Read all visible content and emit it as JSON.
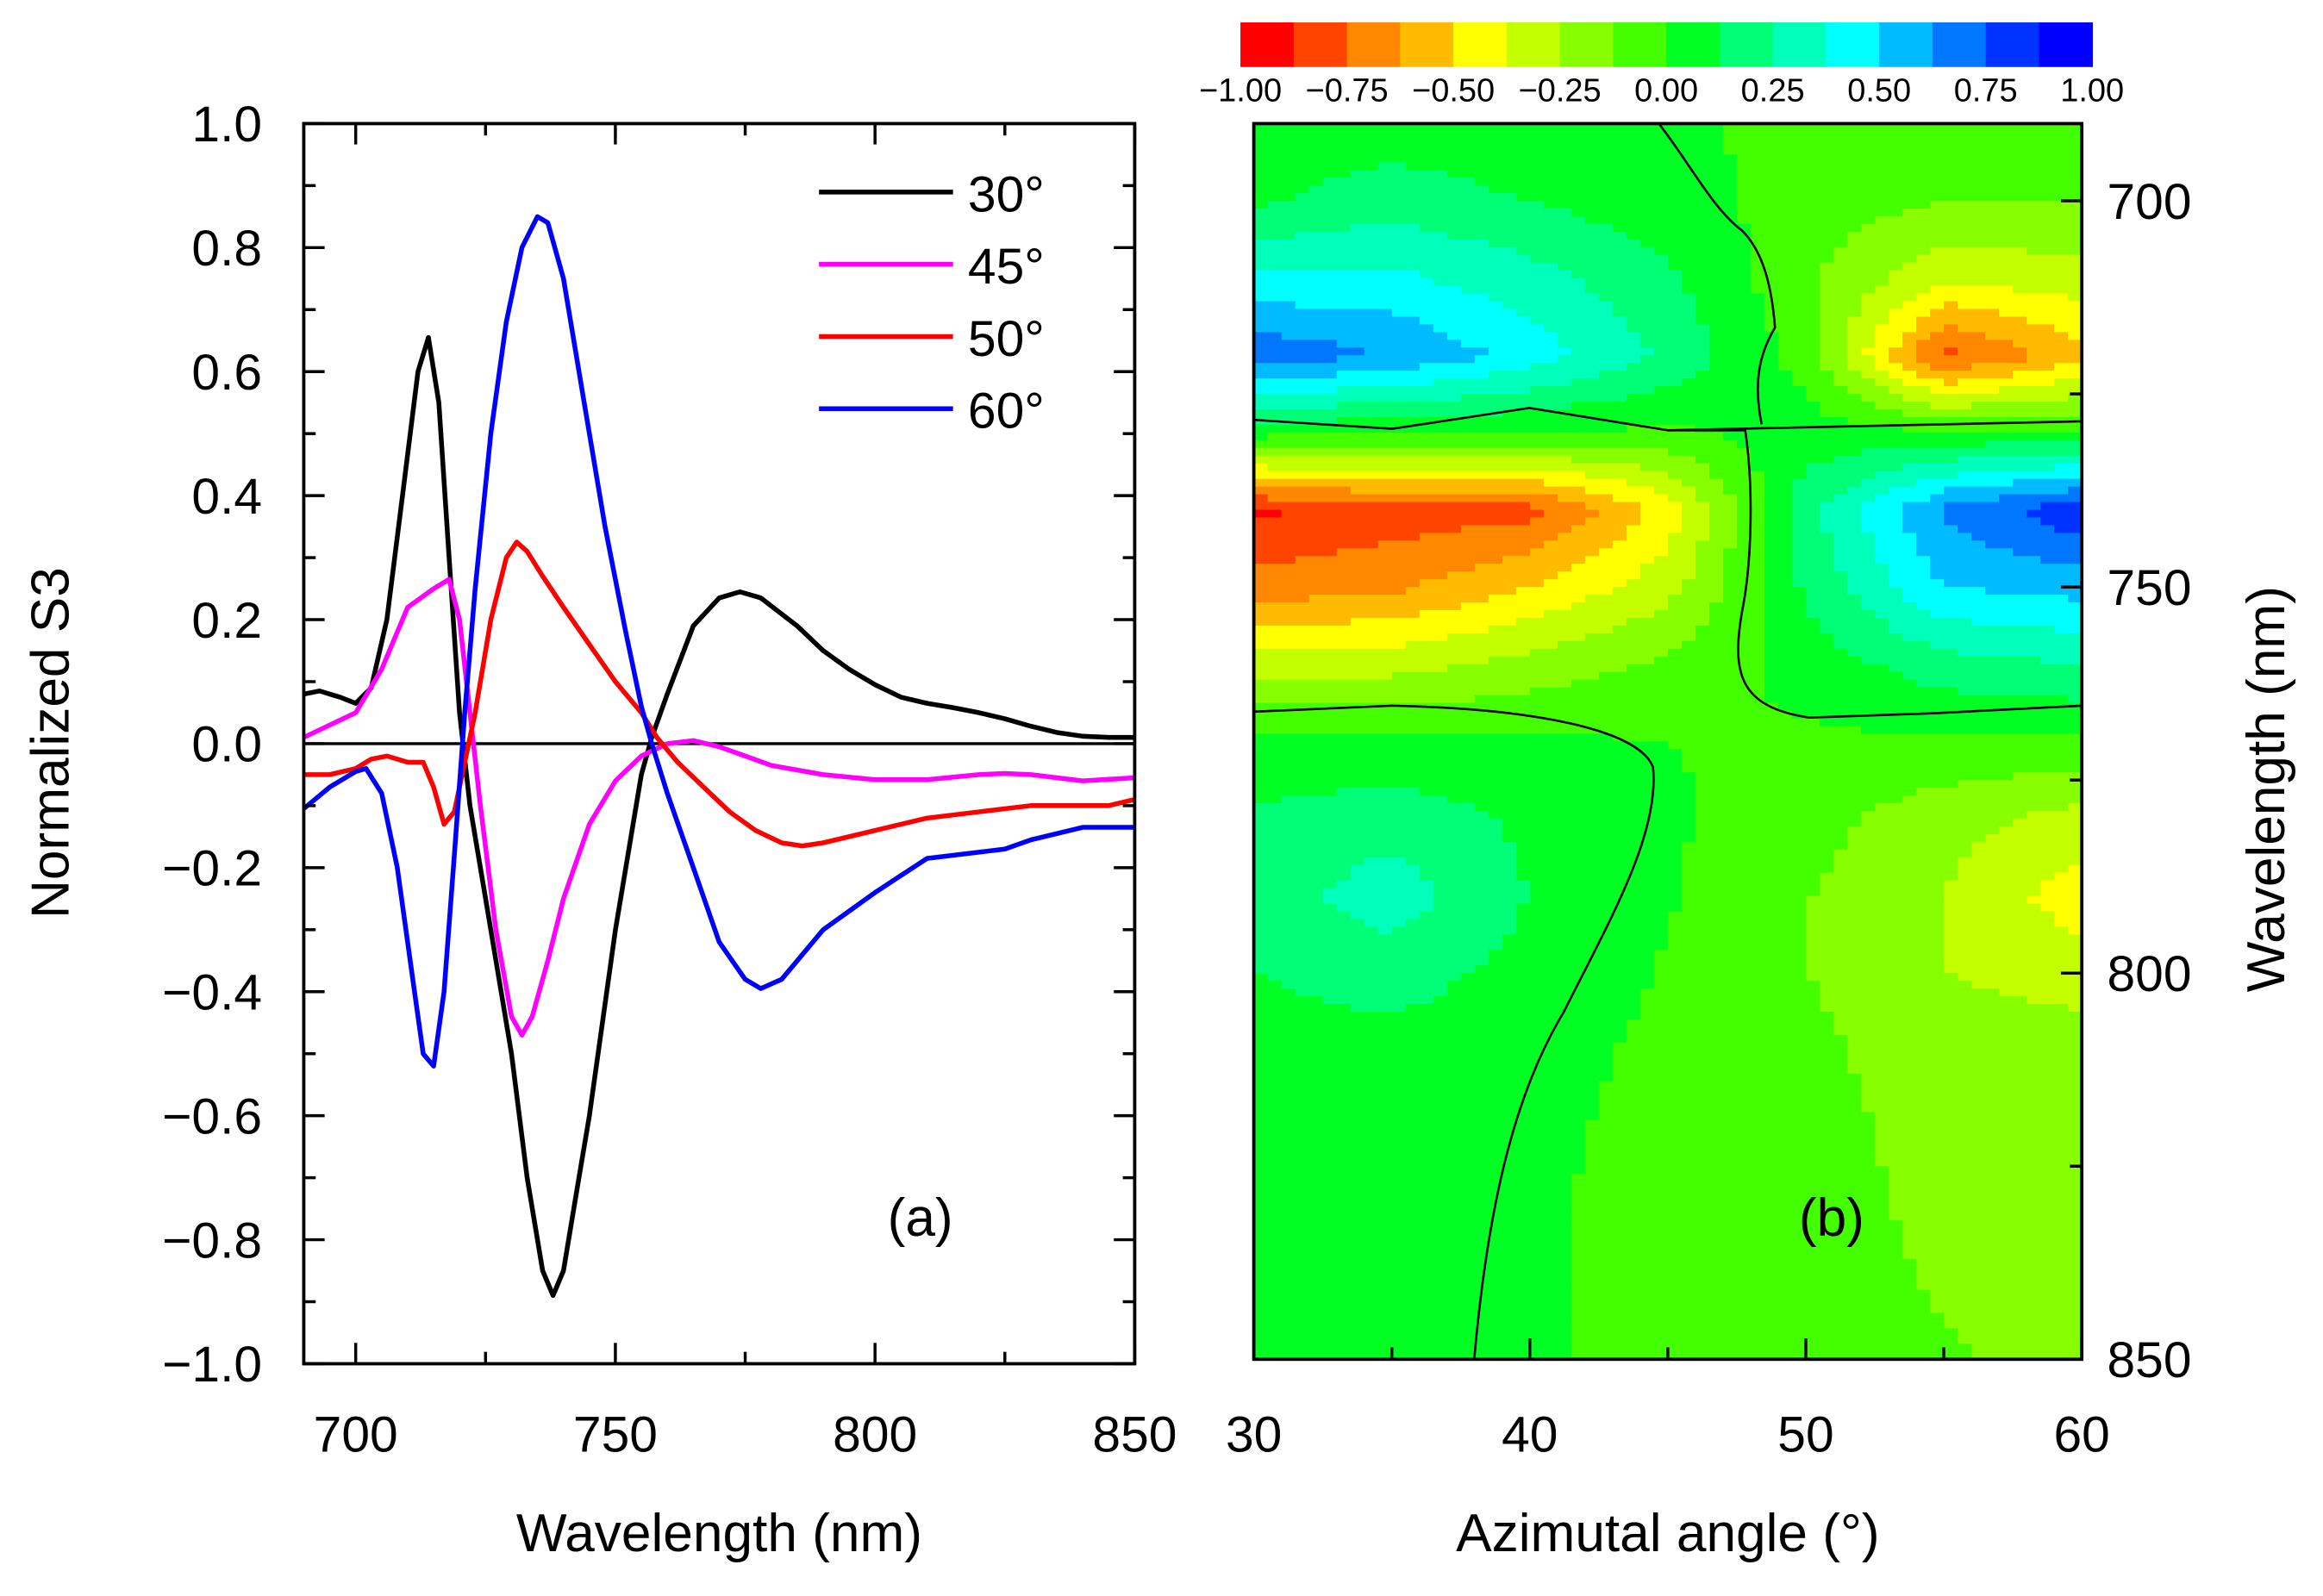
{
  "chart_data": [
    {
      "type": "line",
      "panel_label": "(a)",
      "xlabel": "Wavelength (nm)",
      "ylabel": "Normalized S3",
      "xlim": [
        690,
        850
      ],
      "ylim": [
        -1.0,
        1.0
      ],
      "xticks": [
        "700",
        "750",
        "800",
        "850"
      ],
      "yticks": [
        "1.0",
        "0.8",
        "0.6",
        "0.4",
        "0.2",
        "0.0",
        "−0.2",
        "−0.4",
        "−0.6",
        "−0.8",
        "−1.0"
      ],
      "legend_position": "top-right",
      "series": [
        {
          "name": "30°",
          "color": "#000000",
          "x": [
            690,
            693,
            697,
            700,
            703,
            706,
            709,
            712,
            714,
            716,
            718,
            720,
            722,
            725,
            730,
            733,
            736,
            738,
            740,
            743,
            745,
            750,
            755,
            757,
            760,
            765,
            770,
            774,
            778,
            785,
            790,
            795,
            800,
            805,
            810,
            815,
            820,
            825,
            830,
            835,
            840,
            845,
            850
          ],
          "y": [
            0.08,
            0.085,
            0.075,
            0.065,
            0.09,
            0.2,
            0.4,
            0.6,
            0.655,
            0.55,
            0.3,
            0.05,
            -0.1,
            -0.25,
            -0.5,
            -0.7,
            -0.85,
            -0.89,
            -0.85,
            -0.7,
            -0.6,
            -0.3,
            -0.05,
            0.01,
            0.08,
            0.19,
            0.235,
            0.245,
            0.235,
            0.19,
            0.15,
            0.12,
            0.095,
            0.075,
            0.065,
            0.058,
            0.05,
            0.04,
            0.028,
            0.018,
            0.012,
            0.01,
            0.01
          ]
        },
        {
          "name": "45°",
          "color": "#ff00ff",
          "x": [
            690,
            695,
            700,
            705,
            710,
            715,
            718,
            720,
            722,
            724,
            727,
            730,
            732,
            734,
            737,
            740,
            745,
            750,
            755,
            760,
            765,
            770,
            775,
            780,
            790,
            800,
            810,
            820,
            825,
            830,
            840,
            850
          ],
          "y": [
            0.01,
            0.03,
            0.05,
            0.12,
            0.22,
            0.25,
            0.265,
            0.2,
            0.05,
            -0.1,
            -0.3,
            -0.44,
            -0.47,
            -0.44,
            -0.35,
            -0.25,
            -0.13,
            -0.06,
            -0.02,
            0,
            0.005,
            -0.005,
            -0.02,
            -0.035,
            -0.05,
            -0.058,
            -0.058,
            -0.05,
            -0.048,
            -0.05,
            -0.06,
            -0.055
          ]
        },
        {
          "name": "50°",
          "color": "#ff0000",
          "x": [
            690,
            695,
            700,
            703,
            706,
            710,
            713,
            715,
            717,
            719,
            721,
            723,
            726,
            729,
            731,
            733,
            736,
            740,
            745,
            750,
            755,
            758,
            762,
            767,
            772,
            777,
            782,
            786,
            790,
            800,
            810,
            820,
            830,
            840,
            845,
            850
          ],
          "y": [
            -0.05,
            -0.05,
            -0.04,
            -0.025,
            -0.02,
            -0.03,
            -0.03,
            -0.07,
            -0.13,
            -0.11,
            -0.03,
            0.05,
            0.2,
            0.3,
            0.325,
            0.31,
            0.27,
            0.22,
            0.16,
            0.1,
            0.05,
            0.01,
            -0.03,
            -0.07,
            -0.11,
            -0.14,
            -0.16,
            -0.165,
            -0.16,
            -0.14,
            -0.12,
            -0.11,
            -0.1,
            -0.1,
            -0.1,
            -0.09
          ]
        },
        {
          "name": "60°",
          "color": "#0000ff",
          "x": [
            690,
            695,
            700,
            702,
            705,
            708,
            711,
            713,
            715,
            717,
            719,
            721,
            723,
            726,
            729,
            732,
            735,
            737,
            740,
            744,
            748,
            752,
            755,
            757,
            760,
            765,
            770,
            775,
            778,
            782,
            790,
            800,
            810,
            820,
            825,
            830,
            840,
            850
          ],
          "y": [
            -0.105,
            -0.07,
            -0.045,
            -0.04,
            -0.08,
            -0.2,
            -0.38,
            -0.5,
            -0.52,
            -0.4,
            -0.18,
            0.05,
            0.25,
            0.5,
            0.68,
            0.8,
            0.85,
            0.84,
            0.75,
            0.55,
            0.35,
            0.18,
            0.06,
            0,
            -0.08,
            -0.2,
            -0.32,
            -0.38,
            -0.395,
            -0.38,
            -0.3,
            -0.24,
            -0.185,
            -0.175,
            -0.17,
            -0.155,
            -0.135,
            -0.135
          ]
        }
      ]
    },
    {
      "type": "heatmap",
      "panel_label": "(b)",
      "xlabel": "Azimutal angle (°)",
      "ylabel": "Wavelength (nm)",
      "xlim": [
        30,
        60
      ],
      "ylim": [
        690,
        850
      ],
      "xticks": [
        "30",
        "40",
        "50",
        "60"
      ],
      "yticks": [
        "700",
        "750",
        "800",
        "850"
      ],
      "colorbar": {
        "range": [
          -1.0,
          1.0
        ],
        "labels": [
          "−1.00",
          "−0.75",
          "−0.50",
          "−0.25",
          "0.00",
          "0.25",
          "0.50",
          "0.75",
          "1.00"
        ],
        "colors": [
          "#ff0000",
          "#ff4400",
          "#ff8800",
          "#ffbb00",
          "#ffff00",
          "#c4ff00",
          "#88ff00",
          "#44ff00",
          "#00ff22",
          "#00ff77",
          "#00ffbb",
          "#00ffff",
          "#00bbff",
          "#0077ff",
          "#0033ff",
          "#0000ff"
        ]
      },
      "angles": [
        30,
        35,
        40,
        45,
        50,
        55,
        60
      ],
      "wavelengths": [
        690,
        700,
        710,
        720,
        730,
        740,
        750,
        760,
        770,
        780,
        790,
        800,
        810,
        820,
        830,
        840,
        850
      ],
      "values": [
        [
          0.02,
          0.05,
          0.03,
          0.01,
          -0.02,
          -0.05,
          -0.05
        ],
        [
          0.1,
          0.2,
          0.12,
          0.05,
          -0.05,
          -0.12,
          -0.12
        ],
        [
          0.4,
          0.4,
          0.3,
          0.15,
          -0.1,
          -0.35,
          -0.3
        ],
        [
          0.72,
          0.62,
          0.45,
          0.22,
          -0.05,
          -0.8,
          -0.55
        ],
        [
          0.05,
          0.02,
          0,
          -0.02,
          0.05,
          0.02,
          0.02
        ],
        [
          -0.9,
          -0.82,
          -0.8,
          -0.45,
          0.2,
          0.65,
          0.85
        ],
        [
          -0.7,
          -0.65,
          -0.5,
          -0.3,
          0.15,
          0.5,
          0.55
        ],
        [
          -0.3,
          -0.3,
          -0.2,
          -0.1,
          0.05,
          0.2,
          0.25
        ],
        [
          0.02,
          0.02,
          0.02,
          0,
          -0.02,
          -0.02,
          -0.02
        ],
        [
          0.15,
          0.2,
          0.1,
          0.02,
          -0.08,
          -0.2,
          -0.3
        ],
        [
          0.18,
          0.32,
          0.12,
          0.01,
          -0.12,
          -0.25,
          -0.45
        ],
        [
          0.12,
          0.18,
          0.08,
          -0.01,
          -0.12,
          -0.25,
          -0.3
        ],
        [
          0.08,
          0.08,
          0.05,
          -0.03,
          -0.1,
          -0.18,
          -0.2
        ],
        [
          0.06,
          0.05,
          0.03,
          -0.04,
          -0.1,
          -0.15,
          -0.18
        ],
        [
          0.05,
          0.04,
          0.02,
          -0.05,
          -0.1,
          -0.14,
          -0.16
        ],
        [
          0.05,
          0.04,
          0.02,
          -0.05,
          -0.1,
          -0.13,
          -0.15
        ],
        [
          0.05,
          0.04,
          0.02,
          -0.05,
          -0.1,
          -0.12,
          -0.14
        ]
      ]
    }
  ]
}
